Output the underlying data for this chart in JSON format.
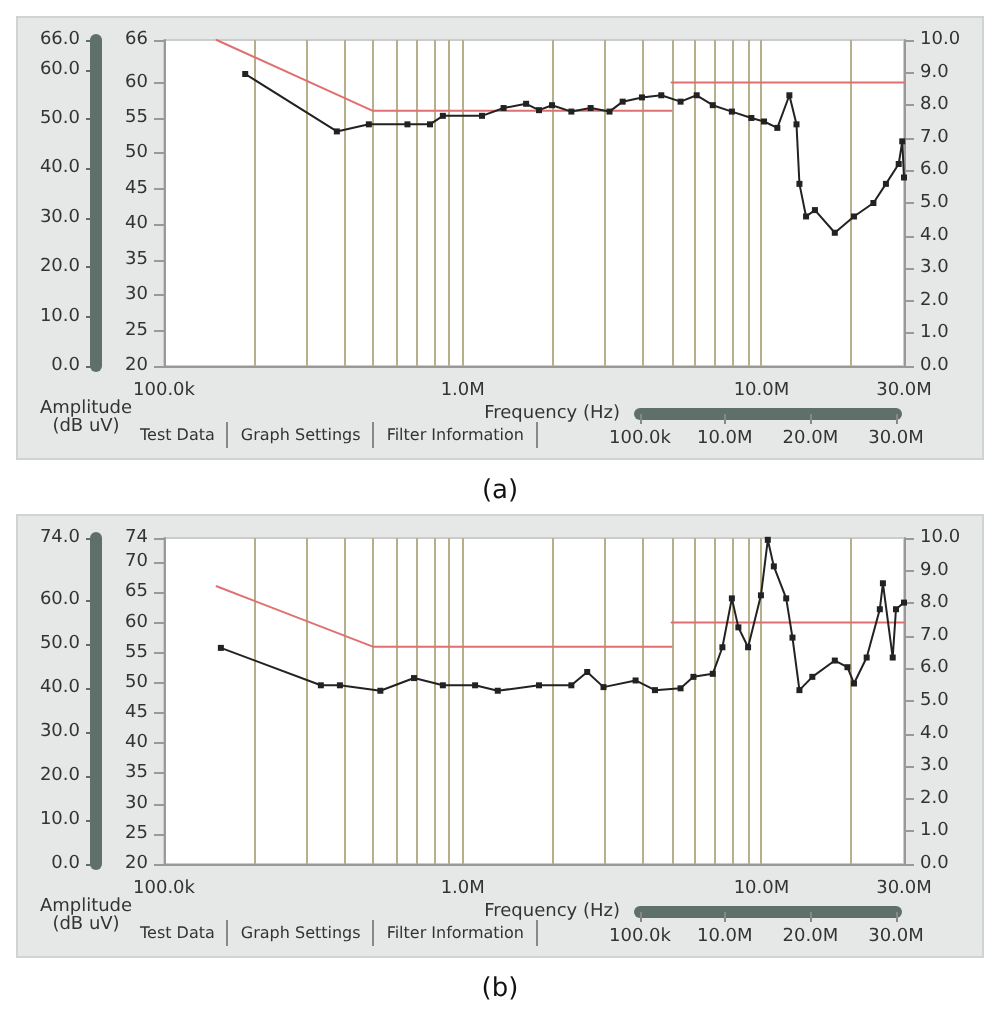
{
  "chart_data": [
    {
      "type": "line",
      "title": "(a)",
      "xlabel": "Frequency (Hz)",
      "ylabel": "Amplitude\n(dB uV)",
      "log": "x",
      "grid": "x",
      "xlim": [
        100000,
        30000000
      ],
      "xticks": [
        {
          "value": 100000,
          "label": "100.0k"
        },
        {
          "value": 200000,
          "label": null
        },
        {
          "value": 300000,
          "label": null
        },
        {
          "value": 400000,
          "label": null
        },
        {
          "value": 500000,
          "label": null
        },
        {
          "value": 600000,
          "label": null
        },
        {
          "value": 700000,
          "label": null
        },
        {
          "value": 800000,
          "label": null
        },
        {
          "value": 900000,
          "label": null
        },
        {
          "value": 1000000,
          "label": "1.0M"
        },
        {
          "value": 2000000,
          "label": null
        },
        {
          "value": 3000000,
          "label": null
        },
        {
          "value": 4000000,
          "label": null
        },
        {
          "value": 5000000,
          "label": null
        },
        {
          "value": 6000000,
          "label": null
        },
        {
          "value": 7000000,
          "label": null
        },
        {
          "value": 8000000,
          "label": null
        },
        {
          "value": 9000000,
          "label": null
        },
        {
          "value": 10000000,
          "label": "10.0M"
        },
        {
          "value": 20000000,
          "label": null
        },
        {
          "value": 30000000,
          "label": "30.0M"
        }
      ],
      "ylim": [
        20,
        66
      ],
      "yticks": [
        20,
        25,
        30,
        35,
        40,
        45,
        50,
        55,
        60,
        66
      ],
      "y2lim": [
        0,
        10
      ],
      "y2ticks": [
        {
          "value": 0,
          "label": "0.0"
        },
        {
          "value": 1,
          "label": "1.0"
        },
        {
          "value": 2,
          "label": "2.0"
        },
        {
          "value": 3,
          "label": "3.0"
        },
        {
          "value": 4,
          "label": "4.0"
        },
        {
          "value": 5,
          "label": "5.0"
        },
        {
          "value": 6,
          "label": "6.0"
        },
        {
          "value": 7,
          "label": "7.0"
        },
        {
          "value": 8,
          "label": "8.0"
        },
        {
          "value": 9,
          "label": "9.0"
        },
        {
          "value": 10,
          "label": "10.0"
        }
      ],
      "y3lim": [
        0,
        66
      ],
      "y3ticks": [
        {
          "value": 0,
          "label": "0.0"
        },
        {
          "value": 10,
          "label": "10.0"
        },
        {
          "value": 20,
          "label": "20.0"
        },
        {
          "value": 30,
          "label": "30.0"
        },
        {
          "value": 40,
          "label": "40.0"
        },
        {
          "value": 50,
          "label": "50.0"
        },
        {
          "value": 60,
          "label": "60.0"
        },
        {
          "value": 66,
          "label": "66.0"
        }
      ],
      "x2lim": [
        100000,
        30000000
      ],
      "x2ticks": [
        {
          "value": 100000,
          "label": "100.0k"
        },
        {
          "value": 10000000,
          "label": "10.0M"
        },
        {
          "value": 20000000,
          "label": "20.0M"
        },
        {
          "value": 30000000,
          "label": "30.0M"
        }
      ],
      "annotations": [
        "Test Data",
        "Graph Settings",
        "Filter Information"
      ],
      "series": [
        {
          "color": "#e07070",
          "marker": "none",
          "x": [
            150000,
            500000,
            5000000
          ],
          "values": [
            66,
            56,
            56
          ]
        },
        {
          "color": "#e07070",
          "marker": "none",
          "x": [
            5000000,
            30000000
          ],
          "values": [
            60,
            60
          ]
        },
        {
          "color": "#222222",
          "marker": "square",
          "x": [
            187000,
            379000,
            485000,
            653000,
            777000,
            858000,
            1160000,
            1370000,
            1630000,
            1800000,
            1990000,
            2310000,
            2680000,
            3100000,
            3430000,
            3980000,
            4620000,
            5360000,
            6070000,
            6870000,
            7960000,
            9250000,
            10200000,
            11300000,
            12400000,
            13100000,
            13400000,
            14100000,
            15100000,
            17600000,
            20400000,
            23700000,
            26100000,
            28800000,
            29600000,
            30000000
          ],
          "values": [
            61.2,
            53.1,
            54.1,
            54.1,
            54.1,
            55.3,
            55.3,
            56.4,
            57.0,
            56.1,
            56.8,
            55.9,
            56.4,
            55.9,
            57.3,
            57.9,
            58.2,
            57.3,
            58.2,
            56.8,
            55.9,
            55.0,
            54.5,
            53.6,
            58.2,
            54.1,
            45.7,
            41.1,
            42.0,
            38.8,
            41.1,
            43.0,
            45.7,
            48.5,
            51.7,
            46.6
          ]
        }
      ]
    },
    {
      "type": "line",
      "title": "(b)",
      "xlabel": "Frequency (Hz)",
      "ylabel": "Amplitude\n(dB uV)",
      "log": "x",
      "grid": "x",
      "xlim": [
        100000,
        30000000
      ],
      "xticks": [
        {
          "value": 100000,
          "label": "100.0k"
        },
        {
          "value": 200000,
          "label": null
        },
        {
          "value": 300000,
          "label": null
        },
        {
          "value": 400000,
          "label": null
        },
        {
          "value": 500000,
          "label": null
        },
        {
          "value": 600000,
          "label": null
        },
        {
          "value": 700000,
          "label": null
        },
        {
          "value": 800000,
          "label": null
        },
        {
          "value": 900000,
          "label": null
        },
        {
          "value": 1000000,
          "label": "1.0M"
        },
        {
          "value": 2000000,
          "label": null
        },
        {
          "value": 3000000,
          "label": null
        },
        {
          "value": 4000000,
          "label": null
        },
        {
          "value": 5000000,
          "label": null
        },
        {
          "value": 6000000,
          "label": null
        },
        {
          "value": 7000000,
          "label": null
        },
        {
          "value": 8000000,
          "label": null
        },
        {
          "value": 9000000,
          "label": null
        },
        {
          "value": 10000000,
          "label": "10.0M"
        },
        {
          "value": 20000000,
          "label": null
        },
        {
          "value": 30000000,
          "label": "30.0M"
        }
      ],
      "ylim": [
        20,
        74
      ],
      "yticks": [
        20,
        25,
        30,
        35,
        40,
        45,
        50,
        55,
        60,
        65,
        70,
        74
      ],
      "y2lim": [
        0,
        10
      ],
      "y2ticks": [
        {
          "value": 0,
          "label": "0.0"
        },
        {
          "value": 1,
          "label": "1.0"
        },
        {
          "value": 2,
          "label": "2.0"
        },
        {
          "value": 3,
          "label": "3.0"
        },
        {
          "value": 4,
          "label": "4.0"
        },
        {
          "value": 5,
          "label": "5.0"
        },
        {
          "value": 6,
          "label": "6.0"
        },
        {
          "value": 7,
          "label": "7.0"
        },
        {
          "value": 8,
          "label": "8.0"
        },
        {
          "value": 9,
          "label": "9.0"
        },
        {
          "value": 10,
          "label": "10.0"
        }
      ],
      "y3lim": [
        0,
        74
      ],
      "y3ticks": [
        {
          "value": 0,
          "label": "0.0"
        },
        {
          "value": 10,
          "label": "10.0"
        },
        {
          "value": 20,
          "label": "20.0"
        },
        {
          "value": 30,
          "label": "30.0"
        },
        {
          "value": 40,
          "label": "40.0"
        },
        {
          "value": 50,
          "label": "50.0"
        },
        {
          "value": 60,
          "label": "60.0"
        },
        {
          "value": 74,
          "label": "74.0"
        }
      ],
      "x2lim": [
        100000,
        30000000
      ],
      "x2ticks": [
        {
          "value": 100000,
          "label": "100.0k"
        },
        {
          "value": 10000000,
          "label": "10.0M"
        },
        {
          "value": 20000000,
          "label": "20.0M"
        },
        {
          "value": 30000000,
          "label": "30.0M"
        }
      ],
      "annotations": [
        "Test Data",
        "Graph Settings",
        "Filter Information"
      ],
      "series": [
        {
          "color": "#e07070",
          "marker": "none",
          "x": [
            150000,
            500000,
            5000000
          ],
          "values": [
            66,
            56,
            56
          ]
        },
        {
          "color": "#e07070",
          "marker": "none",
          "x": [
            5000000,
            30000000
          ],
          "values": [
            60,
            60
          ]
        },
        {
          "color": "#222222",
          "marker": "square",
          "x": [
            155000,
            335000,
            388000,
            530000,
            687000,
            858000,
            1100000,
            1310000,
            1800000,
            2310000,
            2610000,
            2960000,
            3790000,
            4400000,
            5360000,
            5920000,
            6870000,
            7400000,
            7960000,
            8370000,
            9020000,
            9960000,
            10500000,
            11000000,
            12100000,
            12700000,
            13400000,
            14800000,
            17600000,
            19400000,
            20400000,
            22500000,
            24900000,
            25500000,
            27500000,
            28200000,
            30000000
          ],
          "values": [
            55.8,
            49.6,
            49.6,
            48.7,
            50.8,
            49.6,
            49.6,
            48.7,
            49.6,
            49.6,
            51.8,
            49.3,
            50.4,
            48.8,
            49.1,
            51.0,
            51.5,
            55.9,
            64.0,
            59.2,
            55.9,
            64.5,
            73.7,
            69.3,
            64.0,
            57.5,
            48.8,
            51.0,
            53.7,
            52.6,
            49.9,
            54.2,
            62.2,
            66.5,
            54.2,
            62.2,
            63.3
          ]
        }
      ]
    }
  ]
}
